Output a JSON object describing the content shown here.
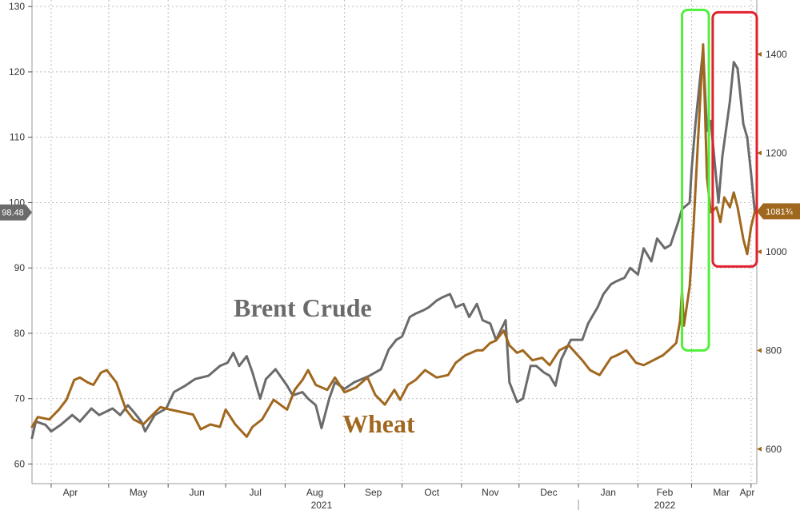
{
  "chart_data": {
    "type": "line",
    "x_type": "date",
    "xlim": [
      "2021-03-22",
      "2022-04-04"
    ],
    "month_ticks": [
      {
        "label": "Apr",
        "date": "2021-04-01"
      },
      {
        "label": "May",
        "date": "2021-05-01"
      },
      {
        "label": "Jun",
        "date": "2021-06-01"
      },
      {
        "label": "Jul",
        "date": "2021-07-01"
      },
      {
        "label": "Aug",
        "date": "2021-08-01"
      },
      {
        "label": "Sep",
        "date": "2021-09-01"
      },
      {
        "label": "Oct",
        "date": "2021-10-01"
      },
      {
        "label": "Nov",
        "date": "2021-11-01"
      },
      {
        "label": "Dec",
        "date": "2021-12-01"
      },
      {
        "label": "Jan",
        "date": "2022-01-01"
      },
      {
        "label": "Feb",
        "date": "2022-02-01"
      },
      {
        "label": "Mar",
        "date": "2022-03-01"
      },
      {
        "label": "Apr",
        "date": "2022-04-01"
      }
    ],
    "year_labels": [
      {
        "label": "2021",
        "date": "2021-08-20"
      },
      {
        "label": "2022",
        "date": "2022-02-15"
      }
    ],
    "left_axis": {
      "ylim": [
        57,
        131
      ],
      "ticks": [
        60,
        70,
        80,
        90,
        100,
        110,
        120,
        130
      ]
    },
    "right_axis": {
      "ylim": [
        530,
        1510
      ],
      "ticks": [
        600,
        800,
        1000,
        1200,
        1400
      ]
    },
    "grid": true,
    "series": [
      {
        "name": "Brent Crude",
        "axis": "left",
        "color": "#6b6b6b",
        "last_value_label": "98.48",
        "points": [
          [
            "2021-03-22",
            64.0
          ],
          [
            "2021-03-24",
            66.5
          ],
          [
            "2021-03-29",
            66.0
          ],
          [
            "2021-04-01",
            65.0
          ],
          [
            "2021-04-06",
            66.0
          ],
          [
            "2021-04-12",
            67.5
          ],
          [
            "2021-04-16",
            66.5
          ],
          [
            "2021-04-22",
            68.5
          ],
          [
            "2021-04-26",
            67.5
          ],
          [
            "2021-05-03",
            68.5
          ],
          [
            "2021-05-07",
            67.5
          ],
          [
            "2021-05-11",
            69.0
          ],
          [
            "2021-05-14",
            68.0
          ],
          [
            "2021-05-18",
            66.5
          ],
          [
            "2021-05-20",
            65.0
          ],
          [
            "2021-05-25",
            67.5
          ],
          [
            "2021-05-31",
            68.5
          ],
          [
            "2021-06-04",
            71.0
          ],
          [
            "2021-06-10",
            72.0
          ],
          [
            "2021-06-15",
            73.0
          ],
          [
            "2021-06-22",
            73.5
          ],
          [
            "2021-06-28",
            75.0
          ],
          [
            "2021-07-02",
            75.5
          ],
          [
            "2021-07-05",
            77.0
          ],
          [
            "2021-07-08",
            75.0
          ],
          [
            "2021-07-12",
            76.5
          ],
          [
            "2021-07-15",
            74.0
          ],
          [
            "2021-07-19",
            70.0
          ],
          [
            "2021-07-22",
            73.0
          ],
          [
            "2021-07-27",
            74.5
          ],
          [
            "2021-08-02",
            72.0
          ],
          [
            "2021-08-05",
            70.5
          ],
          [
            "2021-08-10",
            71.0
          ],
          [
            "2021-08-13",
            70.0
          ],
          [
            "2021-08-17",
            69.0
          ],
          [
            "2021-08-20",
            65.5
          ],
          [
            "2021-08-24",
            70.0
          ],
          [
            "2021-08-27",
            72.5
          ],
          [
            "2021-09-01",
            71.5
          ],
          [
            "2021-09-06",
            72.5
          ],
          [
            "2021-09-10",
            73.0
          ],
          [
            "2021-09-14",
            73.5
          ],
          [
            "2021-09-20",
            74.5
          ],
          [
            "2021-09-24",
            77.5
          ],
          [
            "2021-09-28",
            79.0
          ],
          [
            "2021-10-01",
            79.5
          ],
          [
            "2021-10-05",
            82.5
          ],
          [
            "2021-10-08",
            83.0
          ],
          [
            "2021-10-12",
            83.5
          ],
          [
            "2021-10-15",
            84.0
          ],
          [
            "2021-10-19",
            85.0
          ],
          [
            "2021-10-22",
            85.5
          ],
          [
            "2021-10-26",
            86.0
          ],
          [
            "2021-10-29",
            84.0
          ],
          [
            "2021-11-02",
            84.5
          ],
          [
            "2021-11-05",
            82.5
          ],
          [
            "2021-11-09",
            84.5
          ],
          [
            "2021-11-12",
            82.0
          ],
          [
            "2021-11-16",
            81.5
          ],
          [
            "2021-11-19",
            79.0
          ],
          [
            "2021-11-24",
            82.0
          ],
          [
            "2021-11-26",
            72.5
          ],
          [
            "2021-11-30",
            69.5
          ],
          [
            "2021-12-03",
            70.0
          ],
          [
            "2021-12-07",
            75.0
          ],
          [
            "2021-12-10",
            75.0
          ],
          [
            "2021-12-14",
            74.0
          ],
          [
            "2021-12-17",
            73.5
          ],
          [
            "2021-12-20",
            72.0
          ],
          [
            "2021-12-23",
            76.0
          ],
          [
            "2021-12-28",
            79.0
          ],
          [
            "2022-01-03",
            79.0
          ],
          [
            "2022-01-06",
            81.5
          ],
          [
            "2022-01-11",
            84.0
          ],
          [
            "2022-01-14",
            86.0
          ],
          [
            "2022-01-18",
            87.5
          ],
          [
            "2022-01-21",
            88.0
          ],
          [
            "2022-01-25",
            88.5
          ],
          [
            "2022-01-28",
            90.0
          ],
          [
            "2022-02-01",
            89.0
          ],
          [
            "2022-02-04",
            93.0
          ],
          [
            "2022-02-08",
            91.0
          ],
          [
            "2022-02-11",
            94.5
          ],
          [
            "2022-02-15",
            93.0
          ],
          [
            "2022-02-18",
            93.5
          ],
          [
            "2022-02-22",
            97.0
          ],
          [
            "2022-02-24",
            99.0
          ],
          [
            "2022-02-28",
            100.0
          ],
          [
            "2022-03-01",
            105.0
          ],
          [
            "2022-03-03",
            112.0
          ],
          [
            "2022-03-07",
            123.5
          ],
          [
            "2022-03-09",
            111.0
          ],
          [
            "2022-03-11",
            112.5
          ],
          [
            "2022-03-15",
            100.0
          ],
          [
            "2022-03-17",
            107.0
          ],
          [
            "2022-03-21",
            115.5
          ],
          [
            "2022-03-23",
            121.5
          ],
          [
            "2022-03-25",
            120.5
          ],
          [
            "2022-03-28",
            112.0
          ],
          [
            "2022-03-30",
            110.0
          ],
          [
            "2022-04-01",
            104.5
          ],
          [
            "2022-04-03",
            98.5
          ]
        ]
      },
      {
        "name": "Wheat",
        "axis": "right",
        "color": "#a0671e",
        "last_value_label": "1081¾",
        "points": [
          [
            "2021-03-22",
            645
          ],
          [
            "2021-03-25",
            665
          ],
          [
            "2021-03-31",
            660
          ],
          [
            "2021-04-05",
            680
          ],
          [
            "2021-04-09",
            700
          ],
          [
            "2021-04-13",
            740
          ],
          [
            "2021-04-16",
            745
          ],
          [
            "2021-04-20",
            735
          ],
          [
            "2021-04-23",
            730
          ],
          [
            "2021-04-27",
            755
          ],
          [
            "2021-04-30",
            760
          ],
          [
            "2021-05-05",
            735
          ],
          [
            "2021-05-10",
            680
          ],
          [
            "2021-05-14",
            660
          ],
          [
            "2021-05-19",
            650
          ],
          [
            "2021-05-24",
            670
          ],
          [
            "2021-05-28",
            685
          ],
          [
            "2021-06-02",
            680
          ],
          [
            "2021-06-08",
            675
          ],
          [
            "2021-06-14",
            670
          ],
          [
            "2021-06-18",
            640
          ],
          [
            "2021-06-23",
            650
          ],
          [
            "2021-06-28",
            645
          ],
          [
            "2021-07-01",
            680
          ],
          [
            "2021-07-06",
            650
          ],
          [
            "2021-07-12",
            625
          ],
          [
            "2021-07-15",
            645
          ],
          [
            "2021-07-20",
            660
          ],
          [
            "2021-07-26",
            700
          ],
          [
            "2021-08-02",
            680
          ],
          [
            "2021-08-06",
            720
          ],
          [
            "2021-08-10",
            740
          ],
          [
            "2021-08-13",
            760
          ],
          [
            "2021-08-17",
            730
          ],
          [
            "2021-08-23",
            720
          ],
          [
            "2021-08-27",
            745
          ],
          [
            "2021-09-01",
            715
          ],
          [
            "2021-09-07",
            725
          ],
          [
            "2021-09-13",
            745
          ],
          [
            "2021-09-17",
            710
          ],
          [
            "2021-09-22",
            690
          ],
          [
            "2021-09-27",
            720
          ],
          [
            "2021-09-30",
            700
          ],
          [
            "2021-10-04",
            730
          ],
          [
            "2021-10-08",
            740
          ],
          [
            "2021-10-13",
            760
          ],
          [
            "2021-10-19",
            745
          ],
          [
            "2021-10-25",
            750
          ],
          [
            "2021-10-29",
            775
          ],
          [
            "2021-11-03",
            790
          ],
          [
            "2021-11-09",
            800
          ],
          [
            "2021-11-12",
            800
          ],
          [
            "2021-11-16",
            815
          ],
          [
            "2021-11-19",
            820
          ],
          [
            "2021-11-23",
            840
          ],
          [
            "2021-11-26",
            810
          ],
          [
            "2021-11-30",
            795
          ],
          [
            "2021-12-03",
            800
          ],
          [
            "2021-12-08",
            780
          ],
          [
            "2021-12-13",
            785
          ],
          [
            "2021-12-17",
            770
          ],
          [
            "2021-12-22",
            800
          ],
          [
            "2021-12-27",
            810
          ],
          [
            "2022-01-03",
            780
          ],
          [
            "2022-01-07",
            760
          ],
          [
            "2022-01-12",
            750
          ],
          [
            "2022-01-18",
            785
          ],
          [
            "2022-01-21",
            790
          ],
          [
            "2022-01-26",
            800
          ],
          [
            "2022-01-31",
            775
          ],
          [
            "2022-02-04",
            770
          ],
          [
            "2022-02-09",
            780
          ],
          [
            "2022-02-14",
            790
          ],
          [
            "2022-02-17",
            800
          ],
          [
            "2022-02-21",
            815
          ],
          [
            "2022-02-23",
            860
          ],
          [
            "2022-02-24",
            920
          ],
          [
            "2022-02-25",
            850
          ],
          [
            "2022-02-28",
            930
          ],
          [
            "2022-03-02",
            1050
          ],
          [
            "2022-03-04",
            1200
          ],
          [
            "2022-03-07",
            1420
          ],
          [
            "2022-03-09",
            1150
          ],
          [
            "2022-03-11",
            1080
          ],
          [
            "2022-03-14",
            1090
          ],
          [
            "2022-03-16",
            1060
          ],
          [
            "2022-03-18",
            1110
          ],
          [
            "2022-03-21",
            1090
          ],
          [
            "2022-03-23",
            1120
          ],
          [
            "2022-03-25",
            1090
          ],
          [
            "2022-03-28",
            1025
          ],
          [
            "2022-03-30",
            995
          ],
          [
            "2022-04-01",
            1050
          ],
          [
            "2022-04-03",
            1081.75
          ]
        ]
      }
    ],
    "annotations": [
      {
        "type": "box",
        "color": "#4ff13b",
        "x": [
          "2022-02-24",
          "2022-03-10"
        ],
        "y_right": [
          800,
          1490
        ]
      },
      {
        "type": "box",
        "color": "#e2202e",
        "x": [
          "2022-03-12",
          "2022-04-04"
        ],
        "y_right": [
          970,
          1485
        ]
      }
    ]
  }
}
